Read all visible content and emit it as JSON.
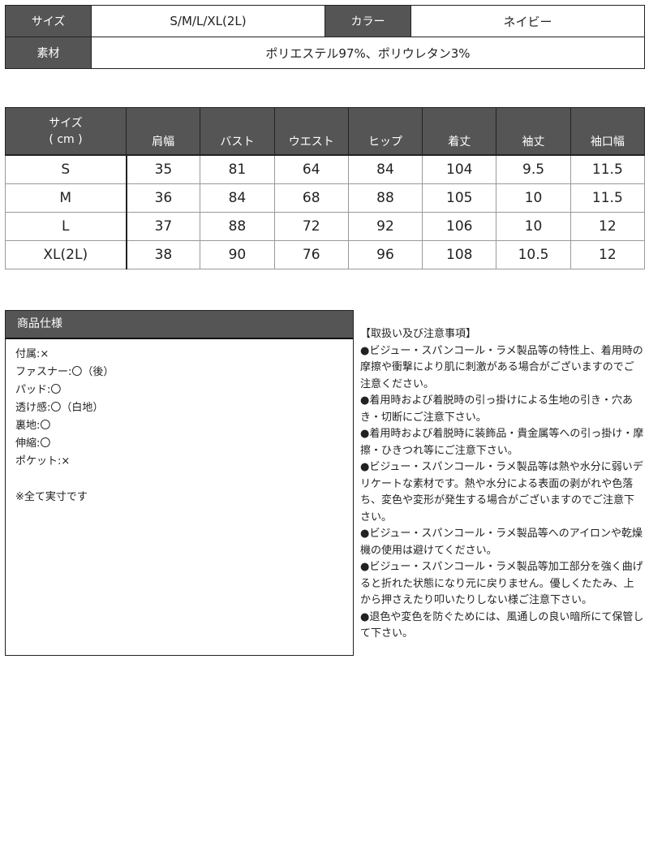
{
  "info": {
    "size_label": "サイズ",
    "size_value": "S/M/L/XL(2L)",
    "color_label": "カラー",
    "color_value": "ネイビー",
    "material_label": "素材",
    "material_value": "ポリエステル97%、ポリウレタン3%"
  },
  "size_table": {
    "corner": [
      "サイズ",
      "( cm )"
    ],
    "headers": [
      "肩幅",
      "バスト",
      "ウエスト",
      "ヒップ",
      "着丈",
      "袖丈",
      "袖口幅"
    ],
    "rows": [
      {
        "size": "S",
        "values": [
          "35",
          "81",
          "64",
          "84",
          "104",
          "9.5",
          "11.5"
        ]
      },
      {
        "size": "M",
        "values": [
          "36",
          "84",
          "68",
          "88",
          "105",
          "10",
          "11.5"
        ]
      },
      {
        "size": "L",
        "values": [
          "37",
          "88",
          "72",
          "92",
          "106",
          "10",
          "12"
        ]
      },
      {
        "size": "XL(2L)",
        "values": [
          "38",
          "90",
          "76",
          "96",
          "108",
          "10.5",
          "12"
        ]
      }
    ]
  },
  "spec": {
    "title": "商品仕様",
    "items": [
      "付属:×",
      "ファスナー:〇（後）",
      "パッド:〇",
      "透け感:〇（白地）",
      "裏地:〇",
      "伸縮:〇",
      "ポケット:×"
    ],
    "note": "※全て実寸です"
  },
  "notes": {
    "title": "【取扱い及び注意事項】",
    "items": [
      "●ビジュー・スパンコール・ラメ製品等の特性上、着用時の摩擦や衝撃により肌に刺激がある場合がございますのでご注意ください。",
      "●着用時および着脱時の引っ掛けによる生地の引き・穴あき・切断にご注意下さい。",
      "●着用時および着脱時に装飾品・貴金属等への引っ掛け・摩擦・ひきつれ等にご注意下さい。",
      "●ビジュー・スパンコール・ラメ製品等は熱や水分に弱いデリケートな素材です。熱や水分による表面の剥がれや色落ち、変色や変形が発生する場合がございますのでご注意下さい。",
      "●ビジュー・スパンコール・ラメ製品等へのアイロンや乾燥機の使用は避けてください。",
      "●ビジュー・スパンコール・ラメ製品等加工部分を強く曲げると折れた状態になり元に戻りません。優しくたたみ、上から押さえたり叩いたりしない様ご注意下さい。",
      "●退色や変色を防ぐためには、風通しの良い暗所にて保管して下さい。"
    ]
  }
}
